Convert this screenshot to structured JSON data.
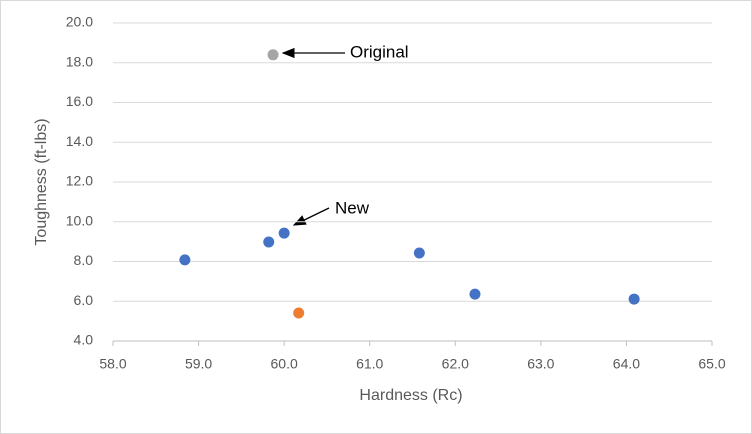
{
  "chart_data": {
    "type": "scatter",
    "x_label": "Hardness (Rc)",
    "y_label": "Toughness (ft-lbs)",
    "series": [
      {
        "color": "#a5a5a5",
        "x": [
          59.87
        ],
        "values": [
          18.4
        ]
      },
      {
        "color": "#4472c4",
        "x": [
          58.84,
          59.82,
          60.0,
          61.58,
          62.23,
          64.09
        ],
        "values": [
          8.08,
          8.98,
          9.43,
          8.43,
          6.36,
          6.11
        ]
      },
      {
        "color": "#ed7d31",
        "x": [
          60.17
        ],
        "values": [
          5.41
        ]
      }
    ],
    "annotations": [
      "Original",
      "New"
    ],
    "xlim": [
      58,
      65
    ],
    "xticks": [
      {
        "value": 58,
        "label": "58.0"
      },
      {
        "value": 59,
        "label": "59.0"
      },
      {
        "value": 60,
        "label": "60.0"
      },
      {
        "value": 61,
        "label": "61.0"
      },
      {
        "value": 62,
        "label": "62.0"
      },
      {
        "value": 63,
        "label": "63.0"
      },
      {
        "value": 64,
        "label": "64.0"
      },
      {
        "value": 65,
        "label": "65.0"
      }
    ],
    "ylim": [
      4,
      20
    ],
    "yticks": [
      {
        "value": 4,
        "label": "4.0"
      },
      {
        "value": 6,
        "label": "6.0"
      },
      {
        "value": 8,
        "label": "8.0"
      },
      {
        "value": 10,
        "label": "10.0"
      },
      {
        "value": 12,
        "label": "12.0"
      },
      {
        "value": 14,
        "label": "14.0"
      },
      {
        "value": 16,
        "label": "16.0"
      },
      {
        "value": 18,
        "label": "18.0"
      },
      {
        "value": 20,
        "label": "20.0"
      }
    ],
    "grid": true
  }
}
